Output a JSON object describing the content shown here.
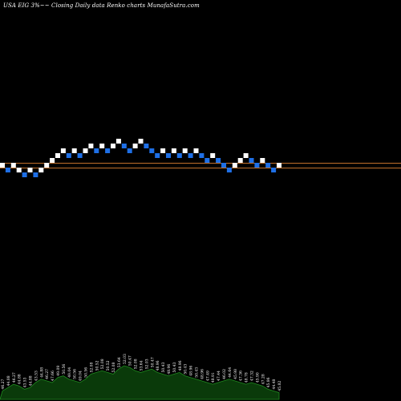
{
  "title": "USA EIG 3%~~ Closing Daily data  Renko  charts MunafaSutra.com",
  "colors": {
    "background": "#000000",
    "up_brick": "#ffffff",
    "down_brick": "#1e6fe6",
    "reference_line": "#c0702a",
    "volume_area": "#0a3a0a",
    "volume_line": "#1f8a1f",
    "text": "#ffffff"
  },
  "chart_data": {
    "type": "renko",
    "brick_size_label": "3%",
    "bricks": [
      {
        "dir": "up",
        "level": 0,
        "label": "46.27"
      },
      {
        "dir": "down",
        "level": -1,
        "label": "44.88"
      },
      {
        "dir": "up",
        "level": 0,
        "label": "46.27"
      },
      {
        "dir": "up",
        "level": -1,
        "label": "44.88"
      },
      {
        "dir": "down",
        "level": -2,
        "label": "43.53"
      },
      {
        "dir": "up",
        "level": -1,
        "label": "44.88"
      },
      {
        "dir": "down",
        "level": -2,
        "label": "43.53"
      },
      {
        "dir": "up",
        "level": -1,
        "label": "44.88"
      },
      {
        "dir": "up",
        "level": 0,
        "label": "46.27"
      },
      {
        "dir": "up",
        "level": 1,
        "label": "47.66"
      },
      {
        "dir": "up",
        "level": 2,
        "label": "49.09"
      },
      {
        "dir": "up",
        "level": 3,
        "label": "50.56"
      },
      {
        "dir": "down",
        "level": 2,
        "label": "49.04"
      },
      {
        "dir": "up",
        "level": 3,
        "label": "50.56"
      },
      {
        "dir": "down",
        "level": 2,
        "label": "49.04"
      },
      {
        "dir": "up",
        "level": 3,
        "label": "50.56"
      },
      {
        "dir": "up",
        "level": 4,
        "label": "52.08"
      },
      {
        "dir": "down",
        "level": 3,
        "label": "50.52"
      },
      {
        "dir": "up",
        "level": 4,
        "label": "52.08"
      },
      {
        "dir": "down",
        "level": 3,
        "label": "50.52"
      },
      {
        "dir": "up",
        "level": 4,
        "label": "52.08"
      },
      {
        "dir": "up",
        "level": 5,
        "label": "53.64"
      },
      {
        "dir": "down",
        "level": 4,
        "label": "52.03"
      },
      {
        "dir": "down",
        "level": 3,
        "label": "50.47"
      },
      {
        "dir": "up",
        "level": 4,
        "label": "52.08"
      },
      {
        "dir": "up",
        "level": 5,
        "label": "53.64"
      },
      {
        "dir": "down",
        "level": 4,
        "label": "52.03"
      },
      {
        "dir": "down",
        "level": 3,
        "label": "50.47"
      },
      {
        "dir": "down",
        "level": 2,
        "label": "48.96"
      },
      {
        "dir": "up",
        "level": 3,
        "label": "50.43"
      },
      {
        "dir": "down",
        "level": 2,
        "label": "48.96"
      },
      {
        "dir": "up",
        "level": 3,
        "label": "50.43"
      },
      {
        "dir": "down",
        "level": 2,
        "label": "48.96"
      },
      {
        "dir": "up",
        "level": 3,
        "label": "50.43"
      },
      {
        "dir": "down",
        "level": 2,
        "label": "48.96"
      },
      {
        "dir": "up",
        "level": 3,
        "label": "50.43"
      },
      {
        "dir": "down",
        "level": 2,
        "label": "48.96"
      },
      {
        "dir": "down",
        "level": 1,
        "label": "47.49"
      },
      {
        "dir": "up",
        "level": 2,
        "label": "48.91"
      },
      {
        "dir": "down",
        "level": 1,
        "label": "47.44"
      },
      {
        "dir": "down",
        "level": 0,
        "label": "46.02"
      },
      {
        "dir": "down",
        "level": -1,
        "label": "44.64"
      },
      {
        "dir": "up",
        "level": 0,
        "label": "45.98"
      },
      {
        "dir": "up",
        "level": 1,
        "label": "47.36"
      },
      {
        "dir": "up",
        "level": 2,
        "label": "48.78"
      },
      {
        "dir": "down",
        "level": 1,
        "label": "47.32"
      },
      {
        "dir": "down",
        "level": 0,
        "label": "45.90"
      },
      {
        "dir": "up",
        "level": 1,
        "label": "47.28"
      },
      {
        "dir": "down",
        "level": 0,
        "label": "45.86"
      },
      {
        "dir": "down",
        "level": -1,
        "label": "44.48"
      },
      {
        "dir": "up",
        "level": 0,
        "label": "45.82"
      }
    ],
    "reference_lines": [
      46.1,
      45.4
    ],
    "volume_profile": [
      0.25,
      0.35,
      0.45,
      0.4,
      0.3,
      0.35,
      0.5,
      0.6,
      0.55,
      0.5,
      0.65,
      0.7,
      0.6,
      0.55,
      0.5,
      0.6,
      0.75,
      0.8,
      0.85,
      0.8,
      0.75,
      0.9,
      1.0,
      0.95,
      0.85,
      0.8,
      0.85,
      0.9,
      0.8,
      0.75,
      0.7,
      0.75,
      0.8,
      0.7,
      0.65,
      0.6,
      0.55,
      0.5,
      0.45,
      0.5,
      0.55,
      0.6,
      0.55,
      0.5,
      0.45,
      0.5,
      0.45,
      0.4,
      0.3,
      0.25,
      0.2
    ]
  }
}
